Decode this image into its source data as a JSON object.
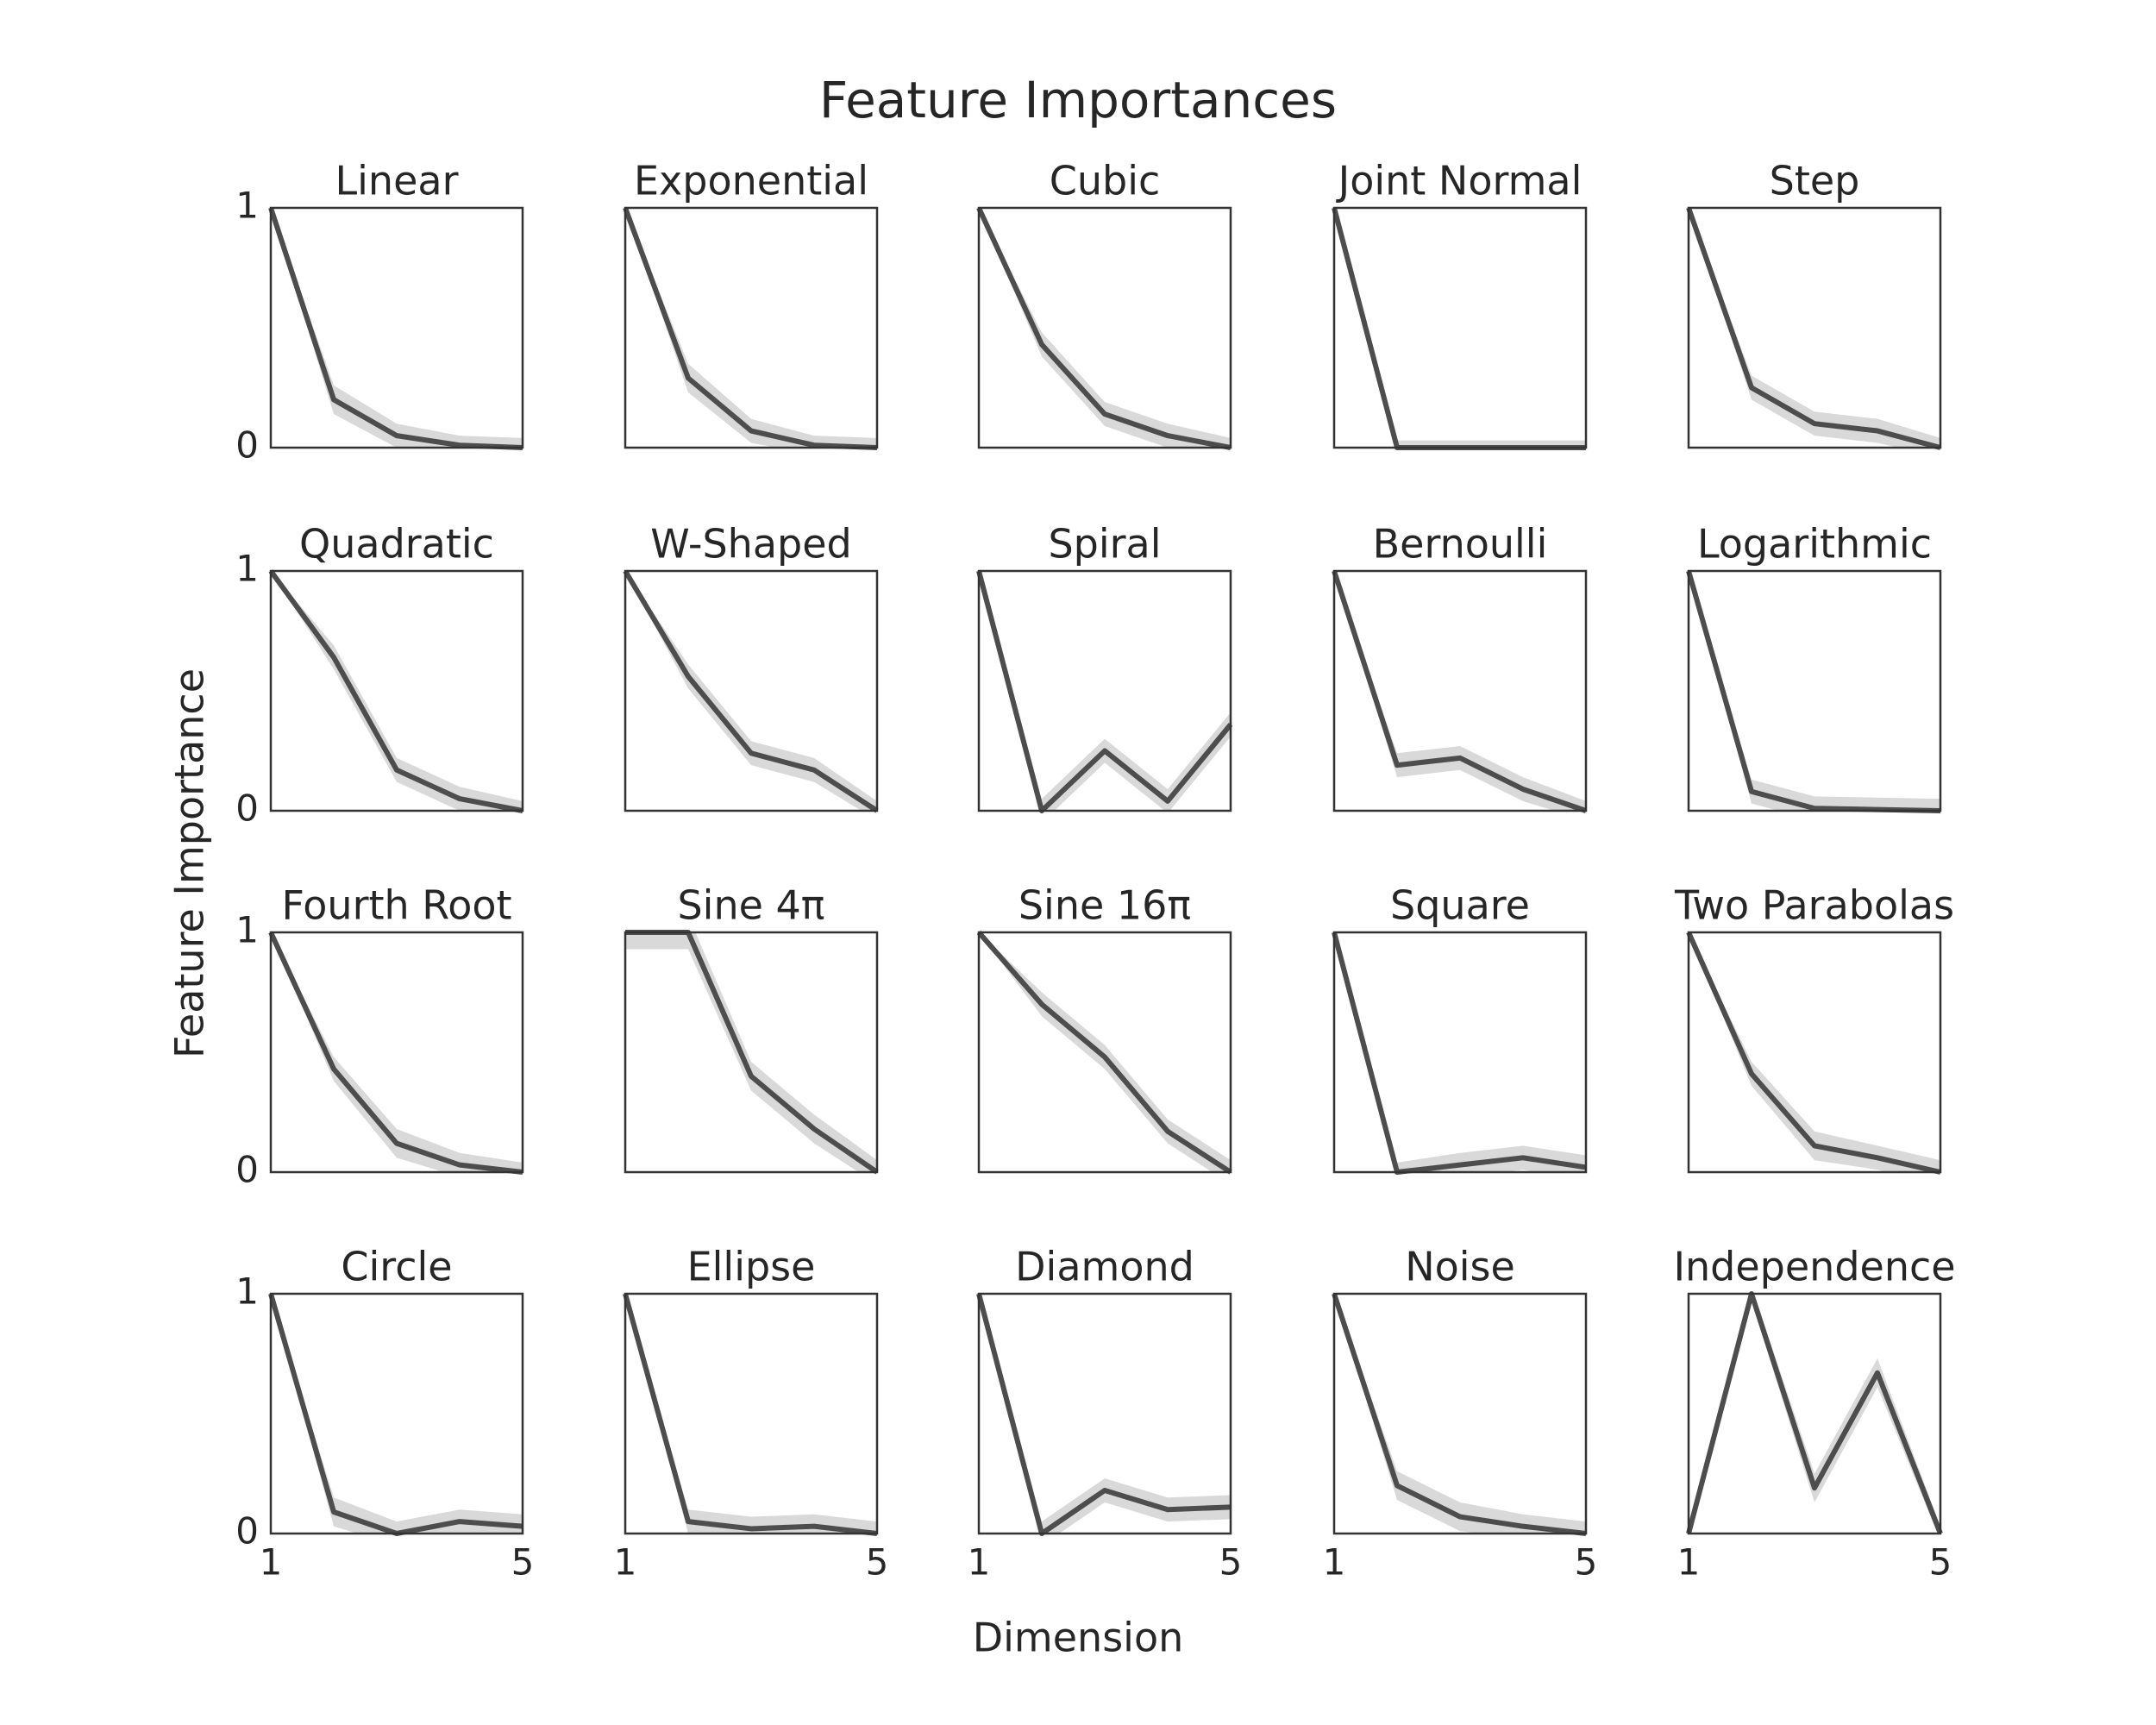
{
  "title": "Feature Importances",
  "x_label": "Dimension",
  "y_label": "Feature Importance",
  "chart_data": [
    {
      "type": "line",
      "title": "Linear",
      "x": [
        1,
        2,
        3,
        4,
        5
      ],
      "values": [
        1,
        0.2,
        0.05,
        0.01,
        0
      ],
      "errors": [
        0,
        0.06,
        0.05,
        0.04,
        0.04
      ],
      "xlim": [
        1,
        5
      ],
      "ylim": [
        0,
        1
      ],
      "yticks": [
        0,
        1
      ],
      "color": "#4d4d4d",
      "band_color": "#d9d9d9"
    },
    {
      "type": "line",
      "title": "Exponential",
      "x": [
        1,
        2,
        3,
        4,
        5
      ],
      "values": [
        1,
        0.29,
        0.07,
        0.01,
        0
      ],
      "errors": [
        0,
        0.06,
        0.05,
        0.04,
        0.04
      ],
      "xlim": [
        1,
        5
      ],
      "ylim": [
        0,
        1
      ],
      "color": "#4d4d4d",
      "band_color": "#d9d9d9"
    },
    {
      "type": "line",
      "title": "Cubic",
      "x": [
        1,
        2,
        3,
        4,
        5
      ],
      "values": [
        1,
        0.43,
        0.14,
        0.05,
        0
      ],
      "errors": [
        0,
        0.05,
        0.05,
        0.05,
        0.04
      ],
      "xlim": [
        1,
        5
      ],
      "ylim": [
        0,
        1
      ],
      "color": "#4d4d4d",
      "band_color": "#d9d9d9"
    },
    {
      "type": "line",
      "title": "Joint Normal",
      "x": [
        1,
        2,
        3,
        4,
        5
      ],
      "values": [
        1,
        0,
        0,
        0,
        0
      ],
      "errors": [
        0,
        0.03,
        0.03,
        0.03,
        0.03
      ],
      "xlim": [
        1,
        5
      ],
      "ylim": [
        0,
        1
      ],
      "color": "#4d4d4d",
      "band_color": "#d9d9d9"
    },
    {
      "type": "line",
      "title": "Step",
      "x": [
        1,
        2,
        3,
        4,
        5
      ],
      "values": [
        1,
        0.25,
        0.1,
        0.07,
        0
      ],
      "errors": [
        0,
        0.05,
        0.05,
        0.05,
        0.04
      ],
      "xlim": [
        1,
        5
      ],
      "ylim": [
        0,
        1
      ],
      "color": "#4d4d4d",
      "band_color": "#d9d9d9"
    },
    {
      "type": "line",
      "title": "Quadratic",
      "x": [
        1,
        2,
        3,
        4,
        5
      ],
      "values": [
        1,
        0.64,
        0.17,
        0.05,
        0
      ],
      "errors": [
        0,
        0.05,
        0.05,
        0.05,
        0.04
      ],
      "xlim": [
        1,
        5
      ],
      "ylim": [
        0,
        1
      ],
      "yticks": [
        0,
        1
      ],
      "color": "#4d4d4d",
      "band_color": "#d9d9d9"
    },
    {
      "type": "line",
      "title": "W-Shaped",
      "x": [
        1,
        2,
        3,
        4,
        5
      ],
      "values": [
        1,
        0.56,
        0.24,
        0.17,
        0
      ],
      "errors": [
        0,
        0.05,
        0.05,
        0.05,
        0.04
      ],
      "xlim": [
        1,
        5
      ],
      "ylim": [
        0,
        1
      ],
      "color": "#4d4d4d",
      "band_color": "#d9d9d9"
    },
    {
      "type": "line",
      "title": "Spiral",
      "x": [
        1,
        2,
        3,
        4,
        5
      ],
      "values": [
        1,
        0,
        0.25,
        0.04,
        0.36
      ],
      "errors": [
        0,
        0.05,
        0.05,
        0.05,
        0.05
      ],
      "xlim": [
        1,
        5
      ],
      "ylim": [
        0,
        1
      ],
      "color": "#4d4d4d",
      "band_color": "#d9d9d9"
    },
    {
      "type": "line",
      "title": "Bernoulli",
      "x": [
        1,
        2,
        3,
        4,
        5
      ],
      "values": [
        1,
        0.19,
        0.22,
        0.09,
        0
      ],
      "errors": [
        0,
        0.05,
        0.05,
        0.05,
        0.04
      ],
      "xlim": [
        1,
        5
      ],
      "ylim": [
        0,
        1
      ],
      "color": "#4d4d4d",
      "band_color": "#d9d9d9"
    },
    {
      "type": "line",
      "title": "Logarithmic",
      "x": [
        1,
        2,
        3,
        4,
        5
      ],
      "values": [
        1,
        0.08,
        0.01,
        0.005,
        0
      ],
      "errors": [
        0,
        0.05,
        0.05,
        0.05,
        0.05
      ],
      "xlim": [
        1,
        5
      ],
      "ylim": [
        0,
        1
      ],
      "color": "#4d4d4d",
      "band_color": "#d9d9d9"
    },
    {
      "type": "line",
      "title": "Fourth Root",
      "x": [
        1,
        2,
        3,
        4,
        5
      ],
      "values": [
        1,
        0.43,
        0.12,
        0.03,
        0
      ],
      "errors": [
        0,
        0.05,
        0.06,
        0.05,
        0.04
      ],
      "xlim": [
        1,
        5
      ],
      "ylim": [
        0,
        1
      ],
      "yticks": [
        0,
        1
      ],
      "color": "#4d4d4d",
      "band_color": "#d9d9d9"
    },
    {
      "type": "line",
      "title": "Sine 4π",
      "x": [
        1,
        2,
        3,
        4,
        5
      ],
      "values": [
        1,
        1,
        0.4,
        0.18,
        0
      ],
      "errors": [
        0.07,
        0.07,
        0.06,
        0.06,
        0.05
      ],
      "xlim": [
        1,
        5
      ],
      "ylim": [
        0,
        1
      ],
      "color": "#4d4d4d",
      "band_color": "#d9d9d9"
    },
    {
      "type": "line",
      "title": "Sine 16π",
      "x": [
        1,
        2,
        3,
        4,
        5
      ],
      "values": [
        1,
        0.7,
        0.48,
        0.17,
        0
      ],
      "errors": [
        0,
        0.05,
        0.05,
        0.05,
        0.05
      ],
      "xlim": [
        1,
        5
      ],
      "ylim": [
        0,
        1
      ],
      "color": "#4d4d4d",
      "band_color": "#d9d9d9"
    },
    {
      "type": "line",
      "title": "Square",
      "x": [
        1,
        2,
        3,
        4,
        5
      ],
      "values": [
        1,
        0,
        0.03,
        0.06,
        0.02
      ],
      "errors": [
        0,
        0.04,
        0.05,
        0.05,
        0.05
      ],
      "xlim": [
        1,
        5
      ],
      "ylim": [
        0,
        1
      ],
      "color": "#4d4d4d",
      "band_color": "#d9d9d9"
    },
    {
      "type": "line",
      "title": "Two Parabolas",
      "x": [
        1,
        2,
        3,
        4,
        5
      ],
      "values": [
        1,
        0.41,
        0.11,
        0.06,
        0
      ],
      "errors": [
        0,
        0.05,
        0.06,
        0.05,
        0.05
      ],
      "xlim": [
        1,
        5
      ],
      "ylim": [
        0,
        1
      ],
      "color": "#4d4d4d",
      "band_color": "#d9d9d9"
    },
    {
      "type": "line",
      "title": "Circle",
      "x": [
        1,
        2,
        3,
        4,
        5
      ],
      "values": [
        1,
        0.09,
        0,
        0.05,
        0.03
      ],
      "errors": [
        0,
        0.06,
        0.05,
        0.05,
        0.05
      ],
      "xlim": [
        1,
        5
      ],
      "ylim": [
        0,
        1
      ],
      "xticks": [
        1,
        5
      ],
      "yticks": [
        0,
        1
      ],
      "color": "#4d4d4d",
      "band_color": "#d9d9d9"
    },
    {
      "type": "line",
      "title": "Ellipse",
      "x": [
        1,
        2,
        3,
        4,
        5
      ],
      "values": [
        1,
        0.05,
        0.02,
        0.03,
        0
      ],
      "errors": [
        0,
        0.05,
        0.05,
        0.05,
        0.05
      ],
      "xlim": [
        1,
        5
      ],
      "ylim": [
        0,
        1
      ],
      "xticks": [
        1,
        5
      ],
      "color": "#4d4d4d",
      "band_color": "#d9d9d9"
    },
    {
      "type": "line",
      "title": "Diamond",
      "x": [
        1,
        2,
        3,
        4,
        5
      ],
      "values": [
        1,
        0,
        0.18,
        0.1,
        0.11
      ],
      "errors": [
        0,
        0.05,
        0.05,
        0.05,
        0.05
      ],
      "xlim": [
        1,
        5
      ],
      "ylim": [
        0,
        1
      ],
      "xticks": [
        1,
        5
      ],
      "color": "#4d4d4d",
      "band_color": "#d9d9d9"
    },
    {
      "type": "line",
      "title": "Noise",
      "x": [
        1,
        2,
        3,
        4,
        5
      ],
      "values": [
        1,
        0.2,
        0.07,
        0.03,
        0
      ],
      "errors": [
        0,
        0.06,
        0.06,
        0.05,
        0.05
      ],
      "xlim": [
        1,
        5
      ],
      "ylim": [
        0,
        1
      ],
      "xticks": [
        1,
        5
      ],
      "color": "#4d4d4d",
      "band_color": "#d9d9d9"
    },
    {
      "type": "line",
      "title": "Independence",
      "x": [
        1,
        2,
        3,
        4,
        5
      ],
      "values": [
        0,
        1,
        0.19,
        0.67,
        0
      ],
      "errors": [
        0.03,
        0.03,
        0.06,
        0.06,
        0.03
      ],
      "xlim": [
        1,
        5
      ],
      "ylim": [
        0,
        1
      ],
      "xticks": [
        1,
        5
      ],
      "color": "#4d4d4d",
      "band_color": "#d9d9d9"
    }
  ]
}
